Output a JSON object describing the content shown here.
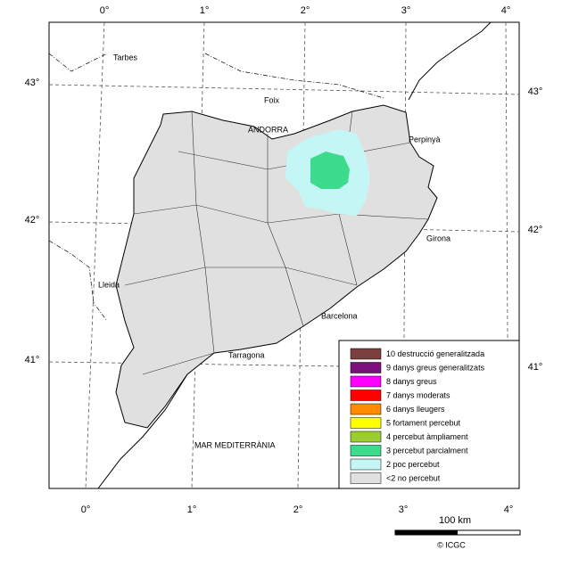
{
  "map": {
    "top_labels": [
      "0°",
      "1°",
      "2°",
      "3°",
      "4°"
    ],
    "bottom_labels": [
      "0°",
      "1°",
      "2°",
      "3°",
      "4°"
    ],
    "left_labels": [
      "43°",
      "42°",
      "41°"
    ],
    "right_labels": [
      "43°",
      "42°",
      "41°"
    ],
    "places": [
      "Tarbes",
      "Foix",
      "ANDORRA",
      "Perpinyà",
      "Girona",
      "Lleida",
      "Barcelona",
      "Tarragona",
      "MAR MEDITERRÀNIA"
    ],
    "legend": [
      {
        "label": "10 destrucció generalitzada",
        "color": "#7b3f3f"
      },
      {
        "label": "9 danys greus generalitzats",
        "color": "#7d0f7d"
      },
      {
        "label": "8 danys greus",
        "color": "#ff00ff"
      },
      {
        "label": "7 danys moderats",
        "color": "#ff0000"
      },
      {
        "label": "6 danys lleugers",
        "color": "#ff8c00"
      },
      {
        "label": "5 fortament percebut",
        "color": "#ffff00"
      },
      {
        "label": "4 percebut àmpliament",
        "color": "#9acd32"
      },
      {
        "label": "3 percebut parcialment",
        "color": "#3ddc8c"
      },
      {
        "label": "2 poc percebut",
        "color": "#c4f6f6"
      },
      {
        "label": "<2 no percebut",
        "color": "#e0e0e0"
      }
    ],
    "scale_label": "100 km",
    "credit": "© ICGC"
  }
}
